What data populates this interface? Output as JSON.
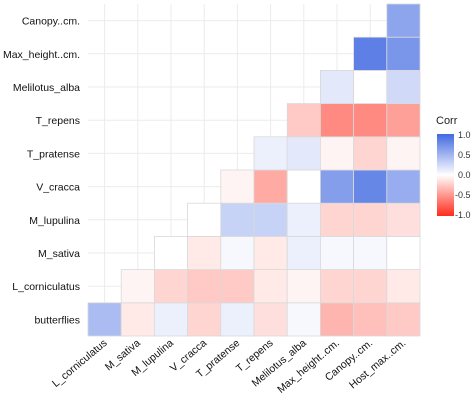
{
  "chart_data": {
    "type": "heatmap",
    "variables": [
      "L_corniculatus",
      "M_sativa",
      "M_lupulina",
      "V_cracca",
      "T_pratense",
      "T_repens",
      "Melilotus_alba",
      "Max_height..cm.",
      "Canopy..cm.",
      "Host_max..cm."
    ],
    "rows": [
      "butterflies",
      "L_corniculatus",
      "M_sativa",
      "M_lupulina",
      "V_cracca",
      "T_pratense",
      "T_repens",
      "Melilotus_alba",
      "Max_height..cm.",
      "Canopy..cm."
    ],
    "cells": [
      [
        0.45,
        -0.1,
        0.1,
        -0.2,
        0.1,
        -0.15,
        0.05,
        -0.35,
        -0.3,
        -0.25
      ],
      [
        null,
        -0.05,
        -0.2,
        -0.25,
        -0.25,
        -0.1,
        -0.05,
        -0.2,
        -0.2,
        -0.1
      ],
      [
        null,
        null,
        0.0,
        -0.1,
        0.05,
        -0.1,
        0.1,
        0.05,
        0.05,
        0.0
      ],
      [
        null,
        null,
        null,
        0.0,
        0.3,
        0.3,
        0.1,
        -0.2,
        -0.2,
        -0.15
      ],
      [
        null,
        null,
        null,
        null,
        -0.05,
        -0.4,
        0.0,
        0.65,
        0.8,
        0.55
      ],
      [
        null,
        null,
        null,
        null,
        null,
        0.1,
        0.15,
        -0.05,
        -0.2,
        -0.05
      ],
      [
        null,
        null,
        null,
        null,
        null,
        null,
        -0.25,
        -0.55,
        -0.55,
        -0.45
      ],
      [
        null,
        null,
        null,
        null,
        null,
        null,
        null,
        0.15,
        0.0,
        0.25
      ],
      [
        null,
        null,
        null,
        null,
        null,
        null,
        null,
        null,
        0.85,
        0.7
      ],
      [
        null,
        null,
        null,
        null,
        null,
        null,
        null,
        null,
        null,
        0.6
      ]
    ],
    "legend": {
      "title": "Corr",
      "ticks": [
        "1.0",
        "0.5",
        "0.0",
        "-0.5",
        "-1.0"
      ],
      "range": [
        -1,
        1
      ]
    },
    "colors": {
      "positive": "#4169e1",
      "neutral": "#ffffff",
      "negative": "#ff2b1a",
      "grid": "#ebebeb",
      "border": "#d9d9d9"
    }
  }
}
